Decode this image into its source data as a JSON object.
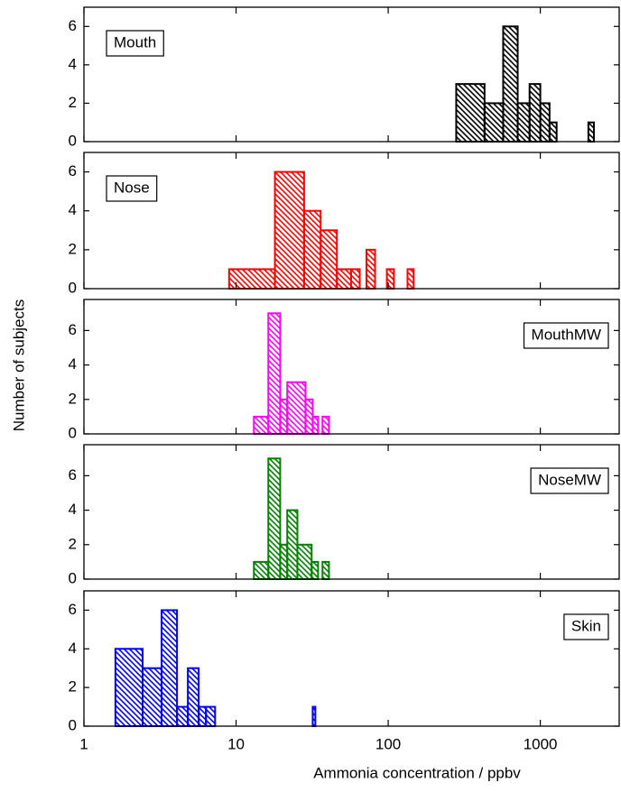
{
  "xlabel": "Ammonia concentration / ppbv",
  "ylabel": "Number of subjects",
  "chart_data": [
    {
      "type": "histogram",
      "label": "Mouth",
      "label_position": "upper left",
      "color": "#000000",
      "bins": [
        280,
        430,
        570,
        710,
        850,
        1000,
        1150,
        1280,
        2070,
        2250
      ],
      "values": [
        3,
        2,
        6,
        2,
        3,
        2,
        1,
        0,
        1
      ],
      "xlim": [
        1,
        3300
      ],
      "xticks": [
        1,
        10,
        100,
        1000
      ],
      "log_x": true,
      "ylim": [
        0,
        7
      ],
      "yticks": [
        0,
        2,
        4,
        6
      ]
    },
    {
      "type": "histogram",
      "label": "Nose",
      "label_position": "upper left",
      "color": "#ff0000",
      "bins": [
        9,
        18,
        28,
        36,
        46,
        57,
        65,
        72,
        82,
        98,
        109,
        134,
        147
      ],
      "values": [
        1,
        6,
        4,
        3,
        1,
        1,
        0,
        2,
        0,
        1,
        0,
        1
      ],
      "xlim": [
        1,
        3300
      ],
      "xticks": [
        1,
        10,
        100,
        1000
      ],
      "log_x": true,
      "ylim": [
        0,
        7
      ],
      "yticks": [
        0,
        2,
        4,
        6
      ]
    },
    {
      "type": "histogram",
      "label": "MouthMW",
      "label_position": "upper right",
      "color": "#ff00ff",
      "bins": [
        13.1,
        16.3,
        19.5,
        21.7,
        28.6,
        31.9,
        34.6,
        37,
        40.8
      ],
      "values": [
        1,
        7,
        2,
        3,
        2,
        1,
        0,
        1
      ],
      "xlim": [
        1,
        3300
      ],
      "xticks": [
        1,
        10,
        100,
        1000
      ],
      "log_x": true,
      "ylim": [
        0,
        7.8
      ],
      "yticks": [
        0,
        2,
        4,
        6
      ]
    },
    {
      "type": "histogram",
      "label": "NoseMW",
      "label_position": "upper right",
      "color": "#008000",
      "bins": [
        13.1,
        16.3,
        19.5,
        21.7,
        25.3,
        31.4,
        34.6,
        37,
        40.8
      ],
      "values": [
        1,
        7,
        2,
        4,
        2,
        1,
        0,
        1
      ],
      "xlim": [
        1,
        3300
      ],
      "xticks": [
        1,
        10,
        100,
        1000
      ],
      "log_x": true,
      "ylim": [
        0,
        7.8
      ],
      "yticks": [
        0,
        2,
        4,
        6
      ]
    },
    {
      "type": "histogram",
      "label": "Skin",
      "label_position": "upper right",
      "color": "#0000ff",
      "bins": [
        1.61,
        2.43,
        3.24,
        4.09,
        4.82,
        5.68,
        6.34,
        7.28,
        31.9,
        33.2
      ],
      "values": [
        4,
        3,
        6,
        1,
        3,
        1,
        1,
        0,
        1
      ],
      "xlim": [
        1,
        3300
      ],
      "xticks": [
        1,
        10,
        100,
        1000
      ],
      "log_x": true,
      "ylim": [
        0,
        7
      ],
      "yticks": [
        0,
        2,
        4,
        6
      ],
      "show_xtick_labels": true
    }
  ]
}
